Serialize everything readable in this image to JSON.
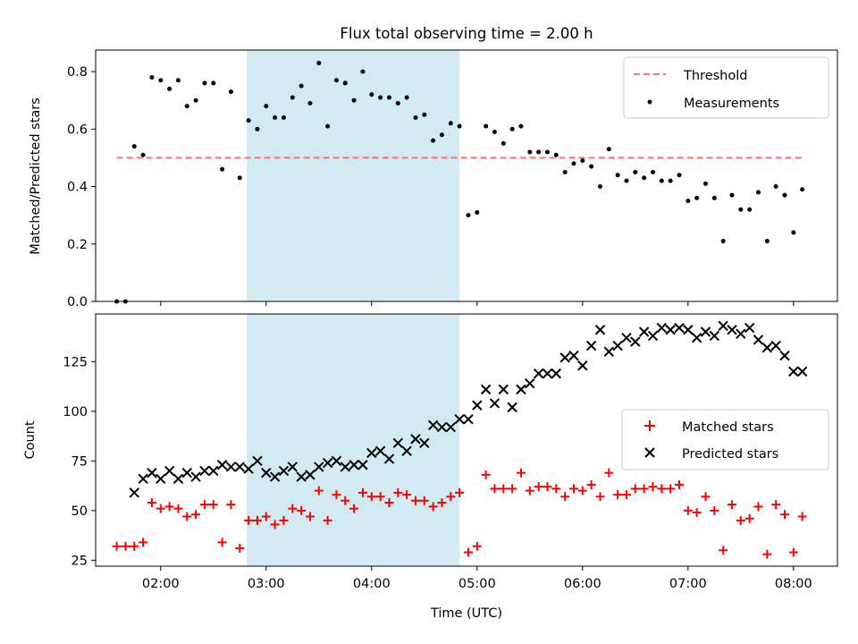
{
  "figure": {
    "title": "Flux total observing time = 2.00 h"
  },
  "chart_data": [
    {
      "type": "scatter",
      "ylabel": "Matched/Predicted stars",
      "xlim": [
        "01:23",
        "08:25"
      ],
      "ylim": [
        0,
        0.875
      ],
      "y_ticks": [
        0.0,
        0.2,
        0.4,
        0.6,
        0.8
      ],
      "x_ticks": [
        "02:00",
        "03:00",
        "04:00",
        "05:00",
        "06:00",
        "07:00",
        "08:00"
      ],
      "shaded_interval": [
        "02:49",
        "04:50"
      ],
      "shade_color": "#add8e6",
      "legend_position": "upper right",
      "threshold": {
        "name": "Threshold",
        "value": 0.5,
        "x_start": "01:35",
        "x_end": "08:05",
        "color": "#ff7070"
      },
      "series": [
        {
          "name": "Measurements",
          "color": "#000000",
          "points": [
            [
              "01:35",
              0.0
            ],
            [
              "01:40",
              0.0
            ],
            [
              "01:45",
              0.54
            ],
            [
              "01:50",
              0.51
            ],
            [
              "01:55",
              0.78
            ],
            [
              "02:00",
              0.77
            ],
            [
              "02:05",
              0.74
            ],
            [
              "02:10",
              0.77
            ],
            [
              "02:15",
              0.68
            ],
            [
              "02:20",
              0.7
            ],
            [
              "02:25",
              0.76
            ],
            [
              "02:30",
              0.76
            ],
            [
              "02:35",
              0.46
            ],
            [
              "02:40",
              0.73
            ],
            [
              "02:45",
              0.43
            ],
            [
              "02:50",
              0.63
            ],
            [
              "02:55",
              0.6
            ],
            [
              "03:00",
              0.68
            ],
            [
              "03:05",
              0.64
            ],
            [
              "03:10",
              0.64
            ],
            [
              "03:15",
              0.71
            ],
            [
              "03:20",
              0.75
            ],
            [
              "03:25",
              0.69
            ],
            [
              "03:30",
              0.83
            ],
            [
              "03:35",
              0.61
            ],
            [
              "03:40",
              0.77
            ],
            [
              "03:45",
              0.76
            ],
            [
              "03:50",
              0.7
            ],
            [
              "03:55",
              0.8
            ],
            [
              "04:00",
              0.72
            ],
            [
              "04:05",
              0.71
            ],
            [
              "04:10",
              0.71
            ],
            [
              "04:15",
              0.69
            ],
            [
              "04:20",
              0.71
            ],
            [
              "04:25",
              0.64
            ],
            [
              "04:30",
              0.65
            ],
            [
              "04:35",
              0.56
            ],
            [
              "04:40",
              0.58
            ],
            [
              "04:45",
              0.62
            ],
            [
              "04:50",
              0.61
            ],
            [
              "04:55",
              0.3
            ],
            [
              "05:00",
              0.31
            ],
            [
              "05:05",
              0.61
            ],
            [
              "05:10",
              0.59
            ],
            [
              "05:15",
              0.55
            ],
            [
              "05:20",
              0.6
            ],
            [
              "05:25",
              0.61
            ],
            [
              "05:30",
              0.52
            ],
            [
              "05:35",
              0.52
            ],
            [
              "05:40",
              0.52
            ],
            [
              "05:45",
              0.51
            ],
            [
              "05:50",
              0.45
            ],
            [
              "05:55",
              0.48
            ],
            [
              "06:00",
              0.49
            ],
            [
              "06:05",
              0.47
            ],
            [
              "06:10",
              0.4
            ],
            [
              "06:15",
              0.53
            ],
            [
              "06:20",
              0.44
            ],
            [
              "06:25",
              0.42
            ],
            [
              "06:30",
              0.45
            ],
            [
              "06:35",
              0.43
            ],
            [
              "06:40",
              0.45
            ],
            [
              "06:45",
              0.42
            ],
            [
              "06:50",
              0.42
            ],
            [
              "06:55",
              0.44
            ],
            [
              "07:00",
              0.35
            ],
            [
              "07:05",
              0.36
            ],
            [
              "07:10",
              0.41
            ],
            [
              "07:15",
              0.36
            ],
            [
              "07:20",
              0.21
            ],
            [
              "07:25",
              0.37
            ],
            [
              "07:30",
              0.32
            ],
            [
              "07:35",
              0.32
            ],
            [
              "07:40",
              0.38
            ],
            [
              "07:45",
              0.21
            ],
            [
              "07:50",
              0.4
            ],
            [
              "07:55",
              0.37
            ],
            [
              "08:00",
              0.24
            ],
            [
              "08:05",
              0.39
            ]
          ]
        }
      ]
    },
    {
      "type": "scatter",
      "ylabel": "Count",
      "xlabel": "Time (UTC)",
      "xlim": [
        "01:23",
        "08:25"
      ],
      "ylim": [
        22,
        149
      ],
      "y_ticks": [
        25,
        50,
        75,
        100,
        125
      ],
      "x_ticks": [
        "02:00",
        "03:00",
        "04:00",
        "05:00",
        "06:00",
        "07:00",
        "08:00"
      ],
      "shaded_interval": [
        "02:49",
        "04:50"
      ],
      "shade_color": "#add8e6",
      "legend_position": "center right",
      "series": [
        {
          "name": "Matched stars",
          "marker": "+",
          "color": "#ff0000",
          "points": [
            [
              "01:35",
              32
            ],
            [
              "01:40",
              32
            ],
            [
              "01:45",
              32
            ],
            [
              "01:50",
              34
            ],
            [
              "01:55",
              54
            ],
            [
              "02:00",
              51
            ],
            [
              "02:05",
              52
            ],
            [
              "02:10",
              51
            ],
            [
              "02:15",
              47
            ],
            [
              "02:20",
              48
            ],
            [
              "02:25",
              53
            ],
            [
              "02:30",
              53
            ],
            [
              "02:35",
              34
            ],
            [
              "02:40",
              53
            ],
            [
              "02:45",
              31
            ],
            [
              "02:50",
              45
            ],
            [
              "02:55",
              45
            ],
            [
              "03:00",
              47
            ],
            [
              "03:05",
              43
            ],
            [
              "03:10",
              45
            ],
            [
              "03:15",
              51
            ],
            [
              "03:20",
              50
            ],
            [
              "03:25",
              47
            ],
            [
              "03:30",
              60
            ],
            [
              "03:35",
              45
            ],
            [
              "03:40",
              58
            ],
            [
              "03:45",
              55
            ],
            [
              "03:50",
              51
            ],
            [
              "03:55",
              59
            ],
            [
              "04:00",
              57
            ],
            [
              "04:05",
              57
            ],
            [
              "04:10",
              54
            ],
            [
              "04:15",
              59
            ],
            [
              "04:20",
              58
            ],
            [
              "04:25",
              55
            ],
            [
              "04:30",
              55
            ],
            [
              "04:35",
              52
            ],
            [
              "04:40",
              54
            ],
            [
              "04:45",
              57
            ],
            [
              "04:50",
              59
            ],
            [
              "04:55",
              29
            ],
            [
              "05:00",
              32
            ],
            [
              "05:05",
              68
            ],
            [
              "05:10",
              61
            ],
            [
              "05:15",
              61
            ],
            [
              "05:20",
              61
            ],
            [
              "05:25",
              69
            ],
            [
              "05:30",
              60
            ],
            [
              "05:35",
              62
            ],
            [
              "05:40",
              62
            ],
            [
              "05:45",
              61
            ],
            [
              "05:50",
              57
            ],
            [
              "05:55",
              61
            ],
            [
              "06:00",
              60
            ],
            [
              "06:05",
              63
            ],
            [
              "06:10",
              57
            ],
            [
              "06:15",
              69
            ],
            [
              "06:20",
              58
            ],
            [
              "06:25",
              58
            ],
            [
              "06:30",
              61
            ],
            [
              "06:35",
              61
            ],
            [
              "06:40",
              62
            ],
            [
              "06:45",
              61
            ],
            [
              "06:50",
              61
            ],
            [
              "06:55",
              63
            ],
            [
              "07:00",
              50
            ],
            [
              "07:05",
              49
            ],
            [
              "07:10",
              57
            ],
            [
              "07:15",
              50
            ],
            [
              "07:20",
              30
            ],
            [
              "07:25",
              53
            ],
            [
              "07:30",
              45
            ],
            [
              "07:35",
              46
            ],
            [
              "07:40",
              52
            ],
            [
              "07:45",
              28
            ],
            [
              "07:50",
              53
            ],
            [
              "07:55",
              48
            ],
            [
              "08:00",
              29
            ],
            [
              "08:05",
              47
            ]
          ]
        },
        {
          "name": "Predicted stars",
          "marker": "x",
          "color": "#000000",
          "points": [
            [
              "01:45",
              59
            ],
            [
              "01:50",
              66
            ],
            [
              "01:55",
              69
            ],
            [
              "02:00",
              66
            ],
            [
              "02:05",
              70
            ],
            [
              "02:10",
              66
            ],
            [
              "02:15",
              69
            ],
            [
              "02:20",
              67
            ],
            [
              "02:25",
              70
            ],
            [
              "02:30",
              70
            ],
            [
              "02:35",
              73
            ],
            [
              "02:40",
              72
            ],
            [
              "02:45",
              72
            ],
            [
              "02:50",
              71
            ],
            [
              "02:55",
              75
            ],
            [
              "03:00",
              69
            ],
            [
              "03:05",
              67
            ],
            [
              "03:10",
              70
            ],
            [
              "03:15",
              72
            ],
            [
              "03:20",
              67
            ],
            [
              "03:25",
              68
            ],
            [
              "03:30",
              72
            ],
            [
              "03:35",
              74
            ],
            [
              "03:40",
              75
            ],
            [
              "03:45",
              72
            ],
            [
              "03:50",
              73
            ],
            [
              "03:55",
              73
            ],
            [
              "04:00",
              79
            ],
            [
              "04:05",
              80
            ],
            [
              "04:10",
              76
            ],
            [
              "04:15",
              84
            ],
            [
              "04:20",
              80
            ],
            [
              "04:25",
              86
            ],
            [
              "04:30",
              84
            ],
            [
              "04:35",
              93
            ],
            [
              "04:40",
              92
            ],
            [
              "04:45",
              92
            ],
            [
              "04:50",
              96
            ],
            [
              "04:55",
              96
            ],
            [
              "05:00",
              103
            ],
            [
              "05:05",
              111
            ],
            [
              "05:10",
              104
            ],
            [
              "05:15",
              111
            ],
            [
              "05:20",
              102
            ],
            [
              "05:25",
              111
            ],
            [
              "05:30",
              114
            ],
            [
              "05:35",
              119
            ],
            [
              "05:40",
              119
            ],
            [
              "05:45",
              119
            ],
            [
              "05:50",
              127
            ],
            [
              "05:55",
              128
            ],
            [
              "06:00",
              123
            ],
            [
              "06:05",
              133
            ],
            [
              "06:10",
              141
            ],
            [
              "06:15",
              130
            ],
            [
              "06:20",
              133
            ],
            [
              "06:25",
              137
            ],
            [
              "06:30",
              135
            ],
            [
              "06:35",
              140
            ],
            [
              "06:40",
              138
            ],
            [
              "06:45",
              142
            ],
            [
              "06:50",
              141
            ],
            [
              "06:55",
              142
            ],
            [
              "07:00",
              141
            ],
            [
              "07:05",
              137
            ],
            [
              "07:10",
              140
            ],
            [
              "07:15",
              138
            ],
            [
              "07:20",
              143
            ],
            [
              "07:25",
              141
            ],
            [
              "07:30",
              139
            ],
            [
              "07:35",
              142
            ],
            [
              "07:40",
              136
            ],
            [
              "07:45",
              132
            ],
            [
              "07:50",
              133
            ],
            [
              "07:55",
              128
            ],
            [
              "08:00",
              120
            ],
            [
              "08:05",
              120
            ]
          ]
        }
      ]
    }
  ]
}
